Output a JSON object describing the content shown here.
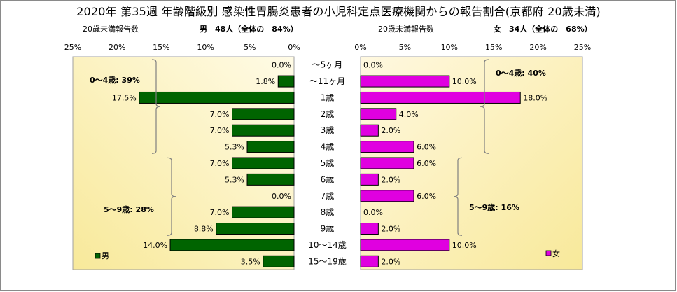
{
  "title": "2020年 第35週 年齢階級別 感染性胃腸炎患者の小児科定点医療機関からの報告割合(京都府 20歳未満)",
  "male_header": {
    "label": "20歳未満報告数",
    "summary": "男　48人（全体の　84%）"
  },
  "female_header": {
    "label": "20歳未満報告数",
    "summary": "女　34人（全体の　68%）"
  },
  "chart_data": [
    {
      "type": "bar",
      "orientation": "horizontal",
      "direction": "right-to-left",
      "categories": [
        "～5ヶ月",
        "～11ヶ月",
        "1歳",
        "2歳",
        "3歳",
        "4歳",
        "5歳",
        "6歳",
        "7歳",
        "8歳",
        "9歳",
        "10～14歳",
        "15～19歳"
      ],
      "series": [
        {
          "name": "男",
          "color": "#006400",
          "values": [
            0.0,
            1.8,
            17.5,
            7.0,
            7.0,
            5.3,
            7.0,
            5.3,
            0.0,
            7.0,
            8.8,
            14.0,
            3.5
          ],
          "labels": [
            "0.0%",
            "1.8%",
            "17.5%",
            "7.0%",
            "7.0%",
            "5.3%",
            "7.0%",
            "5.3%",
            "0.0%",
            "7.0%",
            "8.8%",
            "14.0%",
            "3.5%"
          ]
        }
      ],
      "xlim": [
        0,
        25
      ],
      "xticks": [
        25,
        20,
        15,
        10,
        5,
        0
      ],
      "xtick_labels": [
        "25%",
        "20%",
        "15%",
        "10%",
        "5%",
        "0%"
      ],
      "background_gradient": [
        "#fffbe6",
        "#f8e99a"
      ],
      "annotations": [
        {
          "text": "0～4歳: 39%",
          "from_category": 0,
          "to_category": 5
        },
        {
          "text": "5～9歳: 28%",
          "from_category": 6,
          "to_category": 10
        }
      ],
      "legend": {
        "text": "男",
        "placement": "bottom-left"
      }
    },
    {
      "type": "bar",
      "orientation": "horizontal",
      "direction": "left-to-right",
      "categories": [
        "～5ヶ月",
        "～11ヶ月",
        "1歳",
        "2歳",
        "3歳",
        "4歳",
        "5歳",
        "6歳",
        "7歳",
        "8歳",
        "9歳",
        "10～14歳",
        "15～19歳"
      ],
      "series": [
        {
          "name": "女",
          "color": "#e000e0",
          "values": [
            0.0,
            10.0,
            18.0,
            4.0,
            2.0,
            6.0,
            6.0,
            2.0,
            6.0,
            0.0,
            2.0,
            10.0,
            2.0
          ],
          "labels": [
            "0.0%",
            "10.0%",
            "18.0%",
            "4.0%",
            "2.0%",
            "6.0%",
            "6.0%",
            "2.0%",
            "6.0%",
            "0.0%",
            "2.0%",
            "10.0%",
            "2.0%"
          ]
        }
      ],
      "xlim": [
        0,
        25
      ],
      "xticks": [
        0,
        5,
        10,
        15,
        20,
        25
      ],
      "xtick_labels": [
        "0%",
        "5%",
        "10%",
        "15%",
        "20%",
        "25%"
      ],
      "background_gradient": [
        "#fff8e0",
        "#f8e99a"
      ],
      "annotations": [
        {
          "text": "0～4歳: 40%",
          "from_category": 0,
          "to_category": 5
        },
        {
          "text": "5～9歳: 16%",
          "from_category": 6,
          "to_category": 10
        }
      ],
      "legend": {
        "text": "女",
        "placement": "bottom-right"
      }
    }
  ]
}
